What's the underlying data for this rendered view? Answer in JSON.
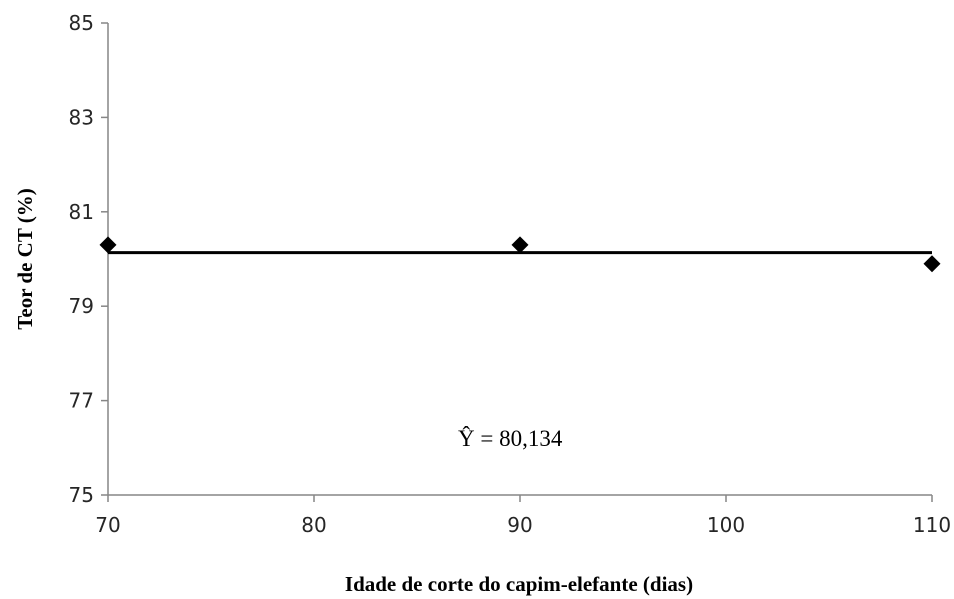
{
  "chart_data": {
    "type": "scatter",
    "xlabel": "Idade de corte do capim-elefante (dias)",
    "ylabel": "Teor de CT (%)",
    "xlim": [
      70,
      110
    ],
    "ylim": [
      75,
      85
    ],
    "x_ticks": [
      70,
      80,
      90,
      100,
      110
    ],
    "y_ticks": [
      75,
      77,
      79,
      81,
      83,
      85
    ],
    "series": [
      {
        "marker": "diamond",
        "color": "#000000",
        "points": [
          {
            "x": 70,
            "y": 80.3
          },
          {
            "x": 90,
            "y": 80.3
          },
          {
            "x": 110,
            "y": 79.9
          }
        ]
      }
    ],
    "trendline": {
      "type": "constant",
      "y": 80.134,
      "color": "#000000"
    },
    "annotation": "Ŷ = 80,134",
    "grid": false
  }
}
